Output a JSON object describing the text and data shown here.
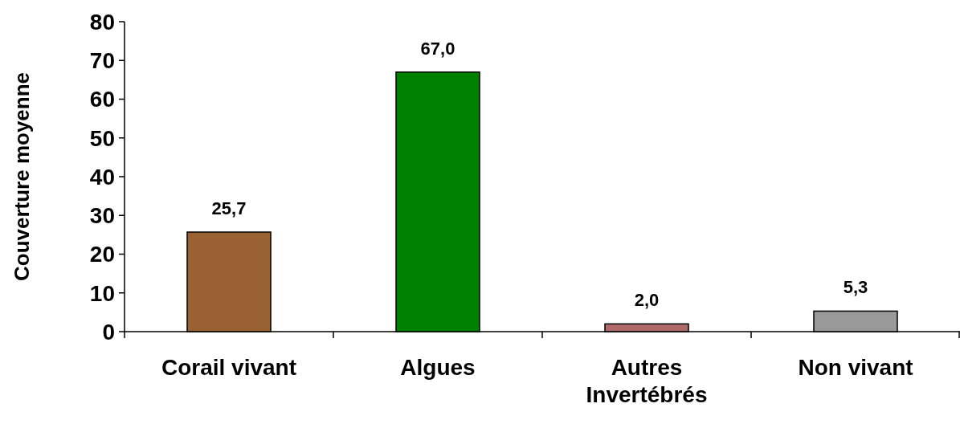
{
  "chart_data": {
    "type": "bar",
    "ylabel": "Couverture moyenne",
    "categories": [
      "Corail vivant",
      "Algues",
      "Autres Invertébrés",
      "Non vivant"
    ],
    "values": [
      25.7,
      67.0,
      2.0,
      5.3
    ],
    "colors": [
      "#9a6233",
      "#008000",
      "#b06a6a",
      "#999999"
    ],
    "value_labels": [
      "25,7",
      "67,0",
      "2,0",
      "5,3"
    ],
    "ylim": [
      0,
      80
    ],
    "yticks": [
      0,
      10,
      20,
      30,
      40,
      50,
      60,
      70,
      80
    ]
  }
}
